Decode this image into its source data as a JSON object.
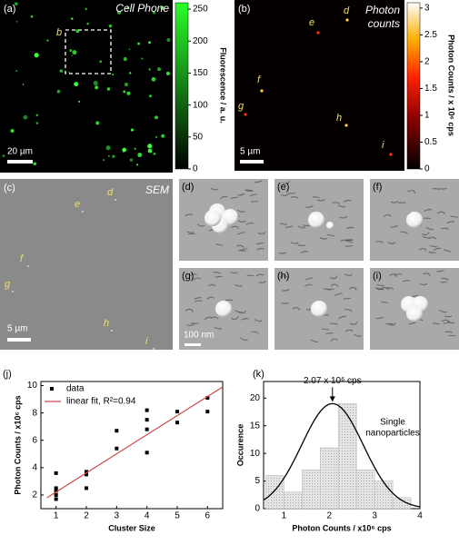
{
  "panels": {
    "a": {
      "label": "(a)",
      "title": "Cell Phone",
      "marker": "b",
      "scale_bar": "20 µm",
      "colorbar": {
        "label": "Fluorescence / a. u.",
        "lim": [
          0,
          260
        ],
        "ticks": [
          0,
          50,
          100,
          150,
          200,
          250
        ]
      }
    },
    "b": {
      "label": "(b)",
      "title": [
        "Photon",
        "counts"
      ],
      "markers": [
        "d",
        "e",
        "f",
        "g",
        "h",
        "i"
      ],
      "scale_bar": "5 µm",
      "colorbar": {
        "label": "Photon Counts / x 10⁶ cps",
        "lim": [
          0,
          3.1
        ],
        "ticks": [
          0,
          0.5,
          1,
          1.5,
          2,
          2.5,
          3
        ]
      }
    },
    "c": {
      "label": "(c)",
      "title": "SEM",
      "markers": [
        "d",
        "e",
        "f",
        "g",
        "h",
        "i"
      ],
      "scale_bar": "5 µm"
    },
    "tiles": [
      "(d)",
      "(e)",
      "(f)",
      "(g)",
      "(h)",
      "(i)"
    ],
    "tile_scale_bar": "100 nm"
  },
  "chart_data": [
    {
      "type": "scatter",
      "label": "(j)",
      "x_label": "Cluster Size",
      "y_label": "Photon Counts / x10⁶ cps",
      "xlim": [
        0.5,
        6.5
      ],
      "ylim": [
        1,
        10.3
      ],
      "xticks": [
        1,
        2,
        3,
        4,
        5,
        6
      ],
      "yticks": [
        2,
        4,
        6,
        8,
        10
      ],
      "series": [
        {
          "name": "data",
          "color": "#000000",
          "x": [
            1,
            1,
            1,
            1,
            1,
            2,
            2,
            2,
            3,
            3,
            4,
            4,
            4,
            4,
            5,
            5,
            6,
            6
          ],
          "values": [
            1.7,
            2.0,
            2.3,
            2.5,
            3.6,
            2.5,
            3.5,
            3.7,
            5.4,
            6.7,
            5.1,
            6.8,
            7.5,
            8.2,
            7.3,
            8.1,
            8.1,
            9.1
          ]
        },
        {
          "name": "linear fit, R²=0.94",
          "color": "#d04848",
          "x": [
            0.7,
            6.5
          ],
          "values": [
            1.8,
            9.9
          ]
        }
      ]
    },
    {
      "type": "histogram",
      "label": "(k)",
      "x_label": "Photon Counts / x10⁶ cps",
      "y_label": "Occurence",
      "xlim": [
        0.55,
        4
      ],
      "ylim": [
        0,
        23
      ],
      "xticks": [
        1,
        2,
        3,
        4
      ],
      "yticks": [
        0,
        5,
        10,
        15,
        20
      ],
      "bins": [
        0.6,
        1.0,
        1.4,
        1.8,
        2.2,
        2.6,
        3.0,
        3.4,
        3.8
      ],
      "values": [
        6,
        3,
        7,
        11,
        19,
        7,
        5,
        2
      ],
      "color": "#d8d8d8",
      "fit": {
        "center": 2.07,
        "amplitude": 19,
        "sigma": 0.68
      },
      "annotation": "2.07 x 10⁶ cps",
      "note": [
        "Single",
        "nanoparticles"
      ]
    }
  ]
}
